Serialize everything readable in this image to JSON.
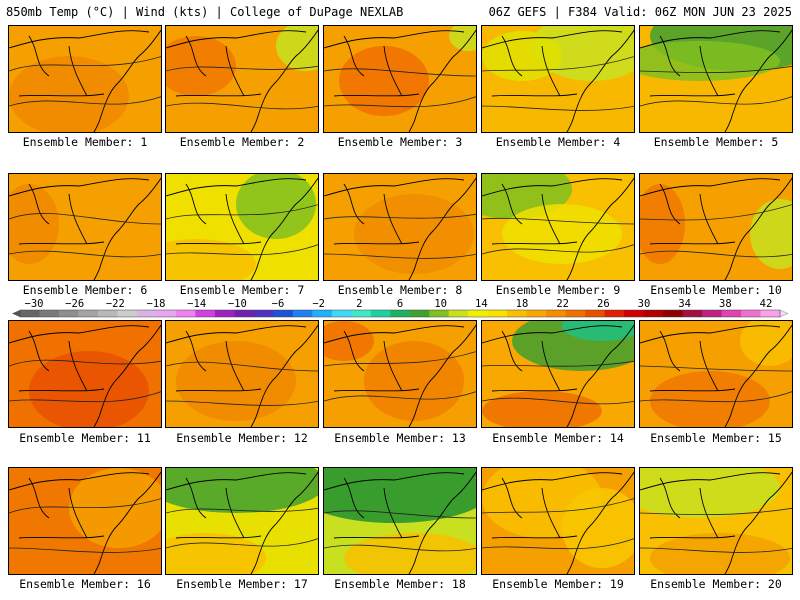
{
  "header": {
    "left": "850mb Temp (°C) | Wind (kts) | College of DuPage NEXLAB",
    "right": "06Z GEFS | F384 Valid: 06Z MON JUN 23 2025"
  },
  "colorbar": {
    "ticks": [
      "−30",
      "−26",
      "−22",
      "−18",
      "−14",
      "−10",
      "−6",
      "−2",
      "2",
      "6",
      "10",
      "14",
      "18",
      "22",
      "26",
      "30",
      "34",
      "38",
      "42"
    ],
    "colors": [
      "#666666",
      "#7a7a7a",
      "#8e8e8e",
      "#a4a4a4",
      "#b8b8b8",
      "#cccccc",
      "#d9b3e6",
      "#e6a6f0",
      "#f080f0",
      "#d040e0",
      "#a020c0",
      "#7020b0",
      "#5030c0",
      "#2050d8",
      "#2080f0",
      "#20b0f8",
      "#40d8f8",
      "#40e8c8",
      "#20d0a0",
      "#20b060",
      "#40a030",
      "#80c020",
      "#c8e020",
      "#f0f000",
      "#f8e000",
      "#f8c000",
      "#f8a800",
      "#f88c00",
      "#f07000",
      "#e85000",
      "#e02000",
      "#d00000",
      "#b00000",
      "#900000",
      "#a01040",
      "#c02080",
      "#e040b0",
      "#f070d0",
      "#f8a0e8"
    ]
  },
  "members": [
    {
      "label": "Ensemble Member: 1",
      "base": "#f5a000",
      "blobs": [
        [
          "#f08800",
          60,
          70,
          60,
          40
        ]
      ]
    },
    {
      "label": "Ensemble Member: 2",
      "base": "#f5a000",
      "blobs": [
        [
          "#f07800",
          30,
          40,
          40,
          30
        ],
        [
          "#c8e020",
          140,
          20,
          30,
          25
        ]
      ]
    },
    {
      "label": "Ensemble Member: 3",
      "base": "#f5a000",
      "blobs": [
        [
          "#f07000",
          60,
          55,
          45,
          35
        ],
        [
          "#c8e020",
          145,
          10,
          20,
          15
        ]
      ]
    },
    {
      "label": "Ensemble Member: 4",
      "base": "#f8b800",
      "blobs": [
        [
          "#c8e020",
          110,
          20,
          60,
          35
        ],
        [
          "#e0e000",
          40,
          30,
          40,
          25
        ]
      ]
    },
    {
      "label": "Ensemble Member: 5",
      "base": "#f8b800",
      "blobs": [
        [
          "#40a030",
          100,
          10,
          90,
          35
        ],
        [
          "#80c020",
          60,
          35,
          80,
          20
        ]
      ]
    },
    {
      "label": "Ensemble Member: 6",
      "base": "#f5a000",
      "blobs": [
        [
          "#f08800",
          20,
          50,
          30,
          40
        ]
      ]
    },
    {
      "label": "Ensemble Member: 7",
      "base": "#f0e000",
      "blobs": [
        [
          "#80c020",
          110,
          30,
          40,
          35
        ],
        [
          "#f8c000",
          30,
          90,
          60,
          25
        ]
      ]
    },
    {
      "label": "Ensemble Member: 8",
      "base": "#f5a000",
      "blobs": [
        [
          "#f08c00",
          90,
          60,
          60,
          40
        ]
      ]
    },
    {
      "label": "Ensemble Member: 9",
      "base": "#f8c000",
      "blobs": [
        [
          "#80c020",
          30,
          15,
          60,
          30
        ],
        [
          "#f0e000",
          80,
          60,
          60,
          30
        ]
      ]
    },
    {
      "label": "Ensemble Member: 10",
      "base": "#f5a000",
      "blobs": [
        [
          "#f07800",
          20,
          50,
          25,
          40
        ],
        [
          "#c8e020",
          140,
          60,
          30,
          35
        ]
      ]
    },
    {
      "label": "Ensemble Member: 11",
      "base": "#f07000",
      "blobs": [
        [
          "#e85000",
          80,
          70,
          60,
          40
        ]
      ]
    },
    {
      "label": "Ensemble Member: 12",
      "base": "#f5a000",
      "blobs": [
        [
          "#f08800",
          70,
          60,
          60,
          40
        ]
      ]
    },
    {
      "label": "Ensemble Member: 13",
      "base": "#f5a000",
      "blobs": [
        [
          "#f08000",
          90,
          60,
          50,
          40
        ],
        [
          "#f07000",
          20,
          20,
          30,
          20
        ]
      ]
    },
    {
      "label": "Ensemble Member: 14",
      "base": "#f8a800",
      "blobs": [
        [
          "#40a030",
          100,
          20,
          70,
          30
        ],
        [
          "#20c080",
          120,
          5,
          40,
          15
        ],
        [
          "#f07000",
          60,
          90,
          60,
          20
        ]
      ]
    },
    {
      "label": "Ensemble Member: 15",
      "base": "#f5a000",
      "blobs": [
        [
          "#f8c000",
          130,
          20,
          30,
          25
        ],
        [
          "#f07800",
          70,
          80,
          60,
          30
        ]
      ]
    },
    {
      "label": "Ensemble Member: 16",
      "base": "#f07800",
      "blobs": [
        [
          "#f5a000",
          110,
          40,
          50,
          40
        ]
      ]
    },
    {
      "label": "Ensemble Member: 17",
      "base": "#e8e000",
      "blobs": [
        [
          "#40a030",
          70,
          15,
          90,
          30
        ],
        [
          "#f8c000",
          40,
          90,
          60,
          25
        ]
      ]
    },
    {
      "label": "Ensemble Member: 18",
      "base": "#c8e020",
      "blobs": [
        [
          "#209030",
          70,
          20,
          100,
          35
        ],
        [
          "#f8c000",
          90,
          90,
          70,
          25
        ]
      ]
    },
    {
      "label": "Ensemble Member: 19",
      "base": "#f5a000",
      "blobs": [
        [
          "#f8c000",
          60,
          30,
          60,
          40
        ],
        [
          "#f8c800",
          120,
          60,
          40,
          40
        ]
      ]
    },
    {
      "label": "Ensemble Member: 20",
      "base": "#f8c000",
      "blobs": [
        [
          "#c8e020",
          60,
          20,
          80,
          30
        ],
        [
          "#f5a000",
          80,
          90,
          70,
          25
        ]
      ]
    }
  ]
}
